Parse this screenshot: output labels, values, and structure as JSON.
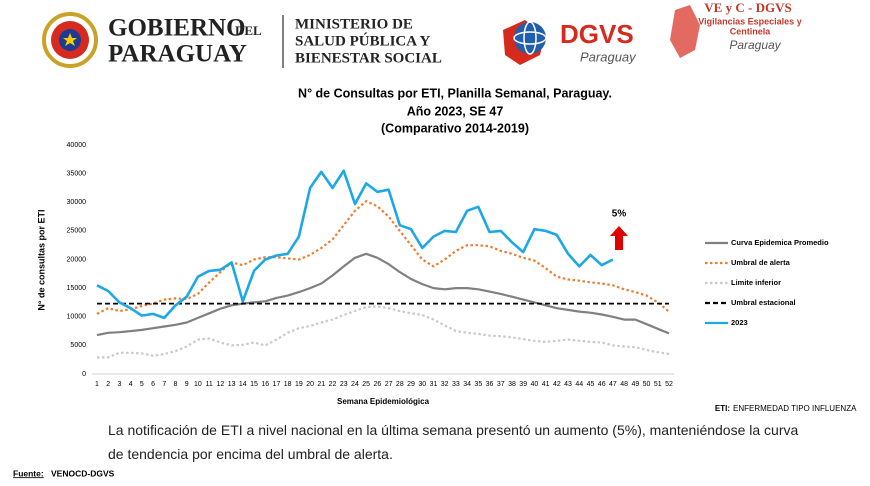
{
  "header": {
    "gov_line1": "GOBIERNO",
    "gov_del": "DEL",
    "gov_line2": "PARAGUAY",
    "ministry": [
      "MINISTERIO DE",
      "SALUD PÚBLICA Y",
      "BIENESTAR SOCIAL"
    ],
    "dgvs": "DGVS",
    "dgvs_sub": "Paraguay",
    "vec_title": "VE y C - DGVS",
    "vec_sub": [
      "Vigilancias Especiales y",
      "Centinela"
    ],
    "vec_country": "Paraguay"
  },
  "chart_data": {
    "type": "line",
    "title": [
      "N° de Consultas por ETI, Planilla Semanal, Paraguay.",
      "Año 2023, SE 47",
      "(Comparativo 2014-2019)"
    ],
    "ylabel": "N° de consultas por ETI",
    "xlabel": "Semana Epidemiológica",
    "categories": [
      1,
      2,
      3,
      4,
      5,
      6,
      7,
      8,
      9,
      10,
      11,
      12,
      13,
      14,
      15,
      16,
      17,
      18,
      19,
      20,
      21,
      22,
      23,
      24,
      25,
      26,
      27,
      28,
      29,
      30,
      31,
      32,
      33,
      34,
      35,
      36,
      37,
      38,
      39,
      40,
      41,
      42,
      43,
      44,
      45,
      46,
      47,
      48,
      49,
      50,
      51,
      52
    ],
    "ylim": [
      0,
      40000
    ],
    "yticks": [
      0,
      5000,
      10000,
      15000,
      20000,
      25000,
      30000,
      35000,
      40000
    ],
    "grid": false,
    "legend": "right",
    "series": [
      {
        "name": "Curva Epidemica Promedio",
        "color": "#808080",
        "style": "solid",
        "values": [
          6800,
          7200,
          7300,
          7500,
          7700,
          8000,
          8300,
          8600,
          9000,
          9800,
          10600,
          11400,
          12000,
          12300,
          12500,
          12700,
          13300,
          13700,
          14300,
          15000,
          15800,
          17200,
          18800,
          20300,
          21000,
          20300,
          19200,
          17800,
          16600,
          15700,
          15000,
          14800,
          15000,
          15000,
          14800,
          14400,
          14000,
          13500,
          13000,
          12500,
          12000,
          11500,
          11200,
          10900,
          10700,
          10400,
          10000,
          9500,
          9500,
          8700,
          7900,
          7100
        ]
      },
      {
        "name": "Umbral de alerta",
        "color": "#ED7D31",
        "style": "dotted",
        "values": [
          10500,
          11500,
          11000,
          11300,
          11900,
          12300,
          13000,
          13200,
          13100,
          14000,
          16000,
          17800,
          19500,
          19000,
          20000,
          20400,
          20400,
          20200,
          20000,
          20800,
          22000,
          23500,
          26000,
          28500,
          30200,
          29300,
          27500,
          25000,
          22500,
          20000,
          18800,
          20000,
          21500,
          22500,
          22500,
          22300,
          21500,
          21000,
          20300,
          19800,
          18500,
          17000,
          16500,
          16300,
          16000,
          15800,
          15500,
          14800,
          14300,
          13700,
          12500,
          10900
        ]
      },
      {
        "name": "Limite inferior",
        "color": "#C9C9C9",
        "style": "dotted",
        "values": [
          2900,
          2900,
          3700,
          3700,
          3600,
          3200,
          3500,
          4000,
          4800,
          6000,
          6200,
          5500,
          5000,
          5100,
          5500,
          5000,
          6000,
          7200,
          8000,
          8400,
          9000,
          9500,
          10300,
          11000,
          11700,
          11800,
          11500,
          11000,
          10600,
          10300,
          9500,
          8500,
          7500,
          7200,
          7000,
          6700,
          6600,
          6400,
          6100,
          5800,
          5600,
          5800,
          6000,
          5800,
          5600,
          5500,
          5000,
          4800,
          4700,
          4200,
          3800,
          3500
        ]
      },
      {
        "name": "Umbral estacional",
        "color": "#000000",
        "style": "dashed",
        "values": [
          12300,
          12300,
          12300,
          12300,
          12300,
          12300,
          12300,
          12300,
          12300,
          12300,
          12300,
          12300,
          12300,
          12300,
          12300,
          12300,
          12300,
          12300,
          12300,
          12300,
          12300,
          12300,
          12300,
          12300,
          12300,
          12300,
          12300,
          12300,
          12300,
          12300,
          12300,
          12300,
          12300,
          12300,
          12300,
          12300,
          12300,
          12300,
          12300,
          12300,
          12300,
          12300,
          12300,
          12300,
          12300,
          12300,
          12300,
          12300,
          12300,
          12300,
          12300,
          12300
        ]
      },
      {
        "name": "2023",
        "color": "#1CA7E6",
        "style": "solid",
        "values": [
          15500,
          14500,
          12500,
          11500,
          10200,
          10500,
          9800,
          12000,
          13500,
          17000,
          18000,
          18200,
          19500,
          12700,
          18000,
          20000,
          20700,
          21000,
          24000,
          32500,
          35300,
          32500,
          35500,
          29700,
          33300,
          31800,
          32200,
          26000,
          25300,
          22000,
          24000,
          25000,
          24800,
          28500,
          29200,
          24800,
          25000,
          23000,
          21300,
          25300,
          25000,
          24300,
          21000,
          18800,
          20800,
          19000,
          20000,
          null,
          null,
          null,
          null,
          null
        ]
      }
    ],
    "annotation": "5%",
    "note_label": "ETI:",
    "note": "ENFERMEDAD TIPO INFLUENZA"
  },
  "body": {
    "text": "La notificación de ETI a nivel nacional en la última semana presentó un aumento (5%), manteniéndose la curva de tendencia  por encima del umbral de alerta.",
    "source_label": "Fuente:",
    "source": "VENOCD-DGVS"
  }
}
